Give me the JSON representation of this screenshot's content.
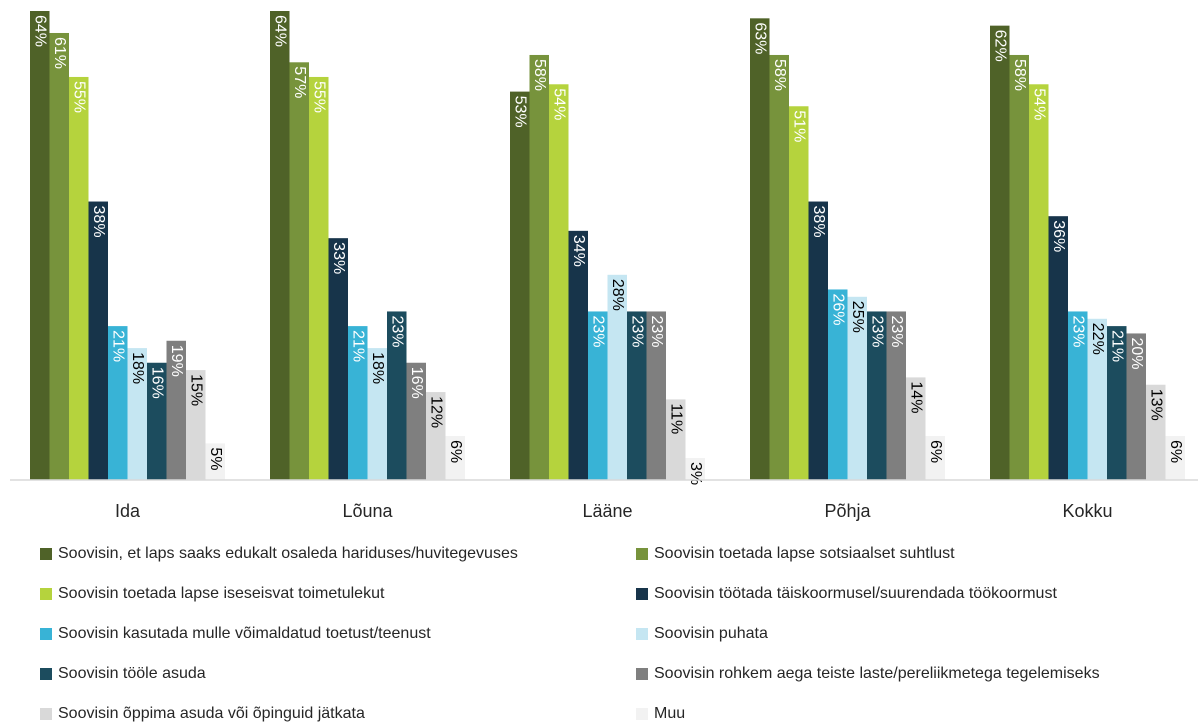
{
  "chart_data": {
    "type": "bar",
    "categories": [
      "Ida",
      "Lõuna",
      "Lääne",
      "Põhja",
      "Kokku"
    ],
    "ylim": [
      0,
      64
    ],
    "series": [
      {
        "name": "Soovisin, et laps saaks edukalt osaleda hariduses/huvitegevuses",
        "color": "#4f6228",
        "values": [
          64,
          64,
          53,
          63,
          62
        ]
      },
      {
        "name": "Soovisin toetada lapse sotsiaalset suhtlust",
        "color": "#77933c",
        "values": [
          61,
          57,
          58,
          58,
          58
        ]
      },
      {
        "name": "Soovisin toetada lapse iseseisvat toimetulekut",
        "color": "#b5d33d",
        "values": [
          55,
          55,
          54,
          51,
          54
        ]
      },
      {
        "name": "Soovisin töötada täiskoormusel/suurendada töökoormust",
        "color": "#17344a",
        "values": [
          38,
          33,
          34,
          38,
          36
        ]
      },
      {
        "name": "Soovisin kasutada mulle võimaldatud toetust/teenust",
        "color": "#38b3d6",
        "values": [
          21,
          21,
          23,
          26,
          23
        ]
      },
      {
        "name": "Soovisin puhata",
        "color": "#c5e6f2",
        "values": [
          18,
          18,
          28,
          25,
          22
        ]
      },
      {
        "name": "Soovisin tööle asuda",
        "color": "#1c4c5e",
        "values": [
          16,
          23,
          23,
          23,
          21
        ]
      },
      {
        "name": "Soovisin rohkem aega teiste laste/pereliikmetega tegelemiseks",
        "color": "#7f7f7f",
        "values": [
          19,
          16,
          23,
          23,
          20
        ]
      },
      {
        "name": "Soovisin õppima asuda või õpinguid jätkata",
        "color": "#d9d9d9",
        "values": [
          15,
          12,
          11,
          14,
          13
        ]
      },
      {
        "name": "Muu",
        "color": "#f2f2f2",
        "values": [
          5,
          6,
          3,
          6,
          6
        ]
      }
    ],
    "value_suffix": "%"
  }
}
